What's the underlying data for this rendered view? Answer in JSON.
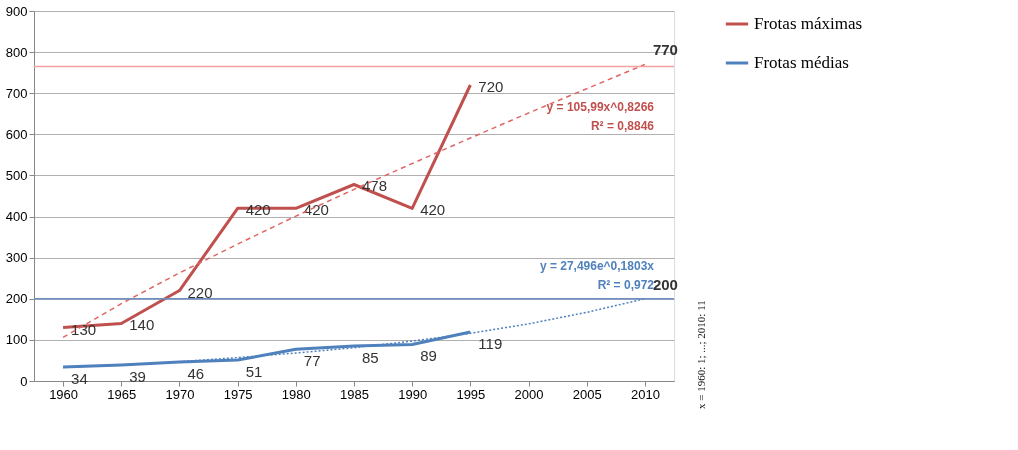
{
  "chart_data": {
    "type": "line",
    "categories": [
      "1960",
      "1965",
      "1970",
      "1975",
      "1980",
      "1985",
      "1990",
      "1995",
      "2000",
      "2005",
      "2010"
    ],
    "series": [
      {
        "name": "Frotas máximas",
        "color": "#c0504d",
        "values": [
          130,
          140,
          220,
          420,
          420,
          478,
          420,
          720,
          null,
          null,
          null
        ],
        "value_labels": [
          "130",
          "140",
          "220",
          "420",
          "420",
          "478",
          "420",
          "720",
          null,
          null,
          null
        ],
        "line_style": "solid"
      },
      {
        "name": "Frotas médias",
        "color": "#4f81bd",
        "values": [
          34,
          39,
          46,
          51,
          77,
          85,
          89,
          119,
          null,
          null,
          null
        ],
        "value_labels": [
          "34",
          "39",
          "46",
          "51",
          "77",
          "85",
          "89",
          "119",
          null,
          null,
          null
        ],
        "line_style": "solid"
      },
      {
        "color": "#e06666",
        "values": [
          106,
          188,
          263,
          333,
          401,
          466,
          529,
          591,
          652,
          711,
          770
        ],
        "value_labels": [
          null,
          null,
          null,
          null,
          null,
          null,
          null,
          null,
          null,
          null,
          "770"
        ],
        "line_style": "dashed"
      },
      {
        "color": "#4f81bd",
        "values": [
          33,
          39,
          47,
          57,
          68,
          81,
          97,
          116,
          139,
          167,
          200
        ],
        "value_labels": [
          null,
          null,
          null,
          null,
          null,
          null,
          null,
          null,
          null,
          null,
          "200"
        ],
        "line_style": "dotted"
      }
    ],
    "ylim": [
      0,
      900
    ],
    "yticks": [
      0,
      100,
      200,
      300,
      400,
      500,
      600,
      700,
      800,
      900
    ],
    "grid": "y",
    "legend": "right",
    "marker": "none",
    "ref_lines": [
      {
        "axis": "y",
        "value": 765,
        "color": "#f4a0a0"
      },
      {
        "axis": "y",
        "value": 200,
        "color": "#6d8fc6"
      }
    ],
    "annotations": [
      "y = 105,99x^0,8266",
      "R² = 0,8846",
      "y = 27,496e^0,1803x",
      "R² = 0,972",
      "x = 1960: 1; ...; 2010: 11"
    ]
  }
}
